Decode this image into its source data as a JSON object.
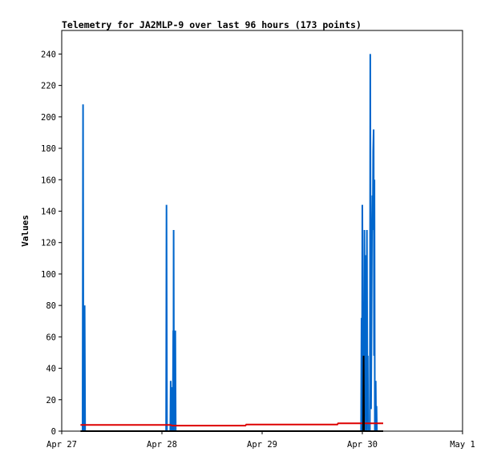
{
  "chart_data": {
    "type": "line",
    "title": "Telemetry for JA2MLP-9 over last 96 hours (173 points)",
    "ylabel": "Values",
    "xlabel": "",
    "x_unit": "hours from Apr 27 00:00",
    "x_range": [
      0,
      96
    ],
    "ylim": [
      0,
      255
    ],
    "x_ticks": [
      {
        "x": 0,
        "label": "Apr 27"
      },
      {
        "x": 24,
        "label": "Apr 28"
      },
      {
        "x": 48,
        "label": "Apr 29"
      },
      {
        "x": 72,
        "label": "Apr 30"
      },
      {
        "x": 96,
        "label": "May 1"
      }
    ],
    "y_ticks": [
      0,
      20,
      40,
      60,
      80,
      100,
      120,
      140,
      160,
      180,
      200,
      220,
      240
    ],
    "grid": false,
    "series": [
      {
        "color": "#0066cc",
        "points": [
          [
            5.0,
            0
          ],
          [
            5.1,
            208
          ],
          [
            5.2,
            0
          ],
          [
            5.4,
            0
          ],
          [
            5.5,
            80
          ],
          [
            5.6,
            0
          ],
          [
            25.0,
            0
          ],
          [
            25.1,
            144
          ],
          [
            25.2,
            0
          ],
          [
            26.0,
            0
          ],
          [
            26.1,
            32
          ],
          [
            26.2,
            0
          ],
          [
            26.3,
            28
          ],
          [
            26.4,
            0
          ],
          [
            26.5,
            20
          ],
          [
            26.6,
            0
          ],
          [
            26.7,
            64
          ],
          [
            26.75,
            0
          ],
          [
            26.8,
            128
          ],
          [
            26.9,
            0
          ],
          [
            27.0,
            64
          ],
          [
            27.1,
            10
          ],
          [
            27.2,
            64
          ],
          [
            27.3,
            0
          ],
          [
            71.7,
            0
          ],
          [
            71.8,
            72
          ],
          [
            71.9,
            0
          ],
          [
            72.0,
            144
          ],
          [
            72.1,
            68
          ],
          [
            72.2,
            40
          ],
          [
            72.3,
            80
          ],
          [
            72.4,
            0
          ],
          [
            72.5,
            128
          ],
          [
            72.6,
            60
          ],
          [
            72.7,
            112
          ],
          [
            72.8,
            0
          ],
          [
            73.0,
            0
          ],
          [
            73.1,
            128
          ],
          [
            73.2,
            20
          ],
          [
            73.3,
            48
          ],
          [
            73.4,
            0
          ],
          [
            73.8,
            0
          ],
          [
            73.9,
            240
          ],
          [
            74.0,
            60
          ],
          [
            74.1,
            14
          ],
          [
            74.2,
            68
          ],
          [
            74.3,
            124
          ],
          [
            74.4,
            150
          ],
          [
            74.5,
            128
          ],
          [
            74.6,
            178
          ],
          [
            74.7,
            192
          ],
          [
            74.8,
            48
          ],
          [
            74.9,
            160
          ],
          [
            75.0,
            0
          ],
          [
            75.1,
            0
          ],
          [
            75.2,
            32
          ],
          [
            75.3,
            0
          ],
          [
            75.4,
            16
          ],
          [
            75.5,
            0
          ]
        ]
      },
      {
        "color": "#dd0000",
        "points": [
          [
            4.5,
            4
          ],
          [
            26,
            4
          ],
          [
            26.5,
            3.5
          ],
          [
            44,
            3.5
          ],
          [
            44.2,
            4.2
          ],
          [
            66,
            4.2
          ],
          [
            66.2,
            5
          ],
          [
            77,
            5
          ]
        ]
      },
      {
        "color": "#000000",
        "points": [
          [
            4.5,
            0
          ],
          [
            72.2,
            0
          ],
          [
            72.3,
            48
          ],
          [
            72.4,
            0
          ],
          [
            77,
            0
          ]
        ]
      }
    ]
  }
}
